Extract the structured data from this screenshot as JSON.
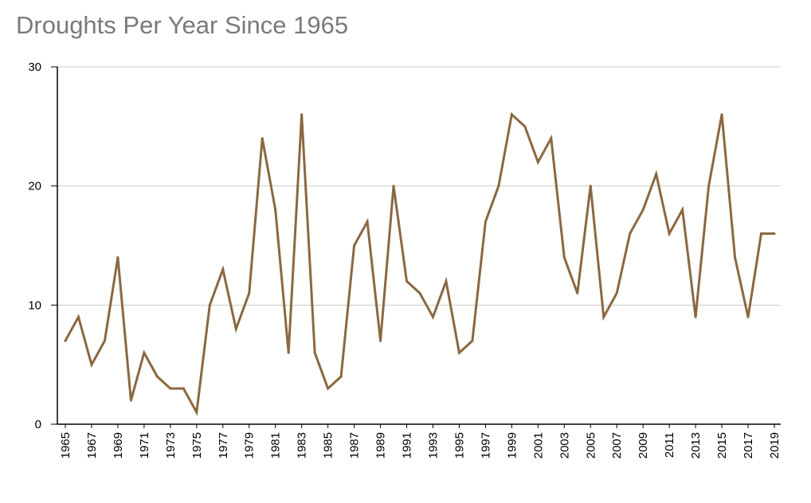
{
  "chart_data": {
    "type": "line",
    "title": "Droughts Per Year Since 1965",
    "xlabel": "",
    "ylabel": "",
    "ylim": [
      0,
      30
    ],
    "yticks": [
      0,
      10,
      20,
      30
    ],
    "grid": true,
    "line_color": "#8b6841",
    "x": [
      1965,
      1966,
      1967,
      1968,
      1969,
      1970,
      1971,
      1972,
      1973,
      1974,
      1975,
      1976,
      1977,
      1978,
      1979,
      1980,
      1981,
      1982,
      1983,
      1984,
      1985,
      1986,
      1987,
      1988,
      1989,
      1990,
      1991,
      1992,
      1993,
      1994,
      1995,
      1996,
      1997,
      1998,
      1999,
      2000,
      2001,
      2002,
      2003,
      2004,
      2005,
      2006,
      2007,
      2008,
      2009,
      2010,
      2011,
      2012,
      2013,
      2014,
      2015,
      2016,
      2017,
      2018,
      2019
    ],
    "xtick_labels": [
      "1965",
      "1967",
      "1969",
      "1971",
      "1973",
      "1975",
      "1977",
      "1979",
      "1981",
      "1983",
      "1985",
      "1987",
      "1989",
      "1991",
      "1993",
      "1995",
      "1997",
      "1999",
      "2001",
      "2003",
      "2005",
      "2007",
      "2009",
      "2011",
      "2013",
      "2015",
      "2017",
      "2019"
    ],
    "series": [
      {
        "values": [
          7,
          9,
          5,
          7,
          14,
          2,
          6,
          4,
          3,
          3,
          1,
          10,
          13,
          8,
          11,
          24,
          18,
          6,
          26,
          6,
          3,
          4,
          15,
          17,
          7,
          20,
          12,
          11,
          9,
          12,
          6,
          7,
          17,
          20,
          26,
          25,
          22,
          24,
          14,
          11,
          20,
          9,
          11,
          16,
          18,
          21,
          16,
          18,
          9,
          20,
          26,
          14,
          9,
          16,
          16
        ]
      }
    ]
  }
}
